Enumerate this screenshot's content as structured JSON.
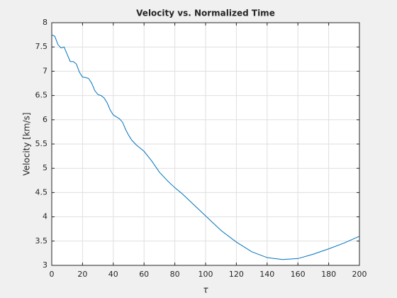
{
  "chart_data": {
    "type": "line",
    "title": "Velocity vs. Normalized Time",
    "xlabel": "τ",
    "ylabel": "Velocity [km/s]",
    "grid": true,
    "xlim": [
      0,
      200
    ],
    "xticks": [
      0,
      20,
      40,
      60,
      80,
      100,
      120,
      140,
      160,
      180,
      200
    ],
    "ylim": [
      3,
      8
    ],
    "yticks": [
      3,
      3.5,
      4,
      4.5,
      5,
      5.5,
      6,
      6.5,
      7,
      7.5,
      8
    ],
    "x": [
      0,
      2,
      4,
      6,
      8,
      10,
      12,
      14,
      16,
      18,
      20,
      22,
      24,
      26,
      28,
      30,
      32,
      34,
      36,
      38,
      40,
      42,
      44,
      46,
      48,
      50,
      52,
      55,
      60,
      65,
      70,
      75,
      80,
      85,
      90,
      100,
      110,
      120,
      130,
      140,
      150,
      160,
      170,
      180,
      190,
      200
    ],
    "series": [
      {
        "name": "Velocity",
        "color": "#0072bd",
        "values": [
          7.75,
          7.72,
          7.55,
          7.48,
          7.5,
          7.35,
          7.2,
          7.2,
          7.15,
          6.98,
          6.88,
          6.87,
          6.85,
          6.75,
          6.6,
          6.52,
          6.5,
          6.45,
          6.35,
          6.2,
          6.1,
          6.06,
          6.02,
          5.95,
          5.8,
          5.68,
          5.58,
          5.48,
          5.35,
          5.15,
          4.92,
          4.75,
          4.6,
          4.47,
          4.32,
          4.02,
          3.72,
          3.48,
          3.28,
          3.16,
          3.12,
          3.14,
          3.23,
          3.34,
          3.46,
          3.6
        ]
      }
    ]
  }
}
